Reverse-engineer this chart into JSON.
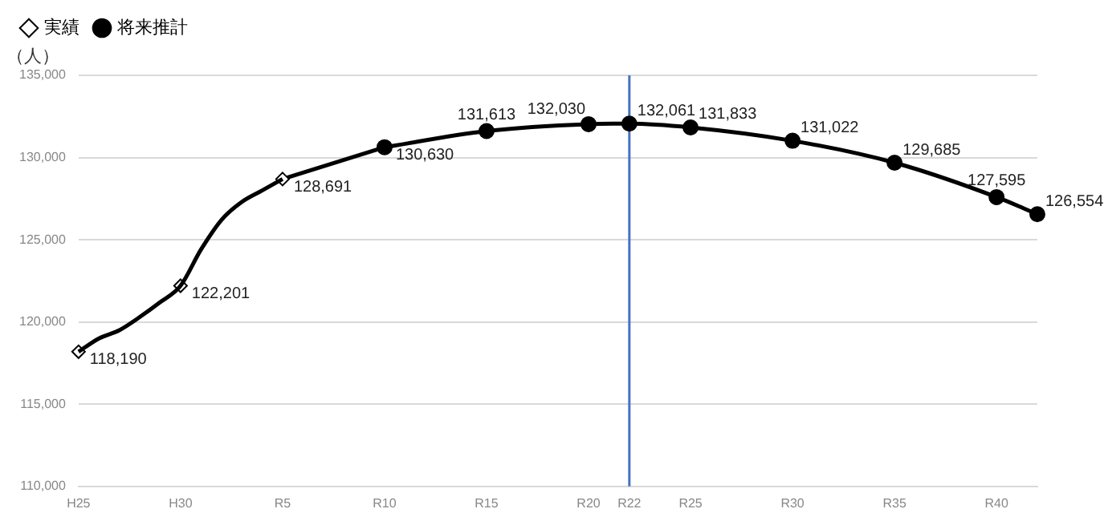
{
  "chart_data": {
    "type": "line",
    "ylabel": "（人）",
    "categories": [
      "H25",
      null,
      null,
      null,
      null,
      "H30",
      null,
      null,
      null,
      null,
      "R5",
      null,
      null,
      null,
      null,
      "R10",
      null,
      null,
      null,
      null,
      "R15",
      null,
      null,
      null,
      null,
      "R20",
      null,
      "R22",
      null,
      null,
      "R25",
      null,
      null,
      null,
      null,
      "R30",
      null,
      null,
      null,
      null,
      "R35",
      null,
      null,
      null,
      null,
      "R40",
      null,
      null
    ],
    "series": [
      {
        "color": "#000000",
        "marker": "none",
        "values": [
          118190,
          119000,
          119500,
          120300,
          121200,
          122201,
          124400,
          126200,
          127300,
          128000,
          128691,
          null,
          null,
          null,
          null,
          null,
          null,
          null,
          null,
          null,
          null,
          null,
          null,
          null,
          null,
          null,
          null,
          null,
          null,
          null,
          null,
          null,
          null,
          null,
          null,
          null,
          null,
          null,
          null,
          null,
          null,
          null,
          null,
          null,
          null,
          null,
          null,
          null
        ]
      },
      {
        "name": "実績",
        "type": "scatter",
        "color": "#000000",
        "marker": "diamond",
        "values": [
          118190,
          null,
          null,
          null,
          null,
          122201,
          null,
          null,
          null,
          null,
          128691,
          null,
          null,
          null,
          null,
          null,
          null,
          null,
          null,
          null,
          null,
          null,
          null,
          null,
          null,
          null,
          null,
          null,
          null,
          null,
          null,
          null,
          null,
          null,
          null,
          null,
          null,
          null,
          null,
          null,
          null,
          null,
          null,
          null,
          null,
          null,
          null,
          null
        ],
        "value_labels": [
          "118,190",
          null,
          null,
          null,
          null,
          "122,201",
          null,
          null,
          null,
          null,
          "128,691",
          null,
          null,
          null,
          null,
          null,
          null,
          null,
          null,
          null,
          null,
          null,
          null,
          null,
          null,
          null,
          null,
          null,
          null,
          null,
          null,
          null,
          null,
          null,
          null,
          null,
          null,
          null,
          null,
          null,
          null,
          null,
          null,
          null,
          null,
          null,
          null,
          null
        ]
      },
      {
        "name": "将来推計",
        "color": "#000000",
        "marker": "circle",
        "values": [
          null,
          null,
          null,
          null,
          null,
          null,
          null,
          null,
          null,
          null,
          null,
          null,
          null,
          null,
          null,
          130630,
          null,
          null,
          null,
          null,
          131613,
          null,
          null,
          null,
          null,
          132030,
          null,
          132061,
          null,
          null,
          131833,
          null,
          null,
          null,
          null,
          131022,
          null,
          null,
          null,
          null,
          129685,
          null,
          null,
          null,
          null,
          127595,
          null,
          126554
        ],
        "value_labels": [
          null,
          null,
          null,
          null,
          null,
          null,
          null,
          null,
          null,
          null,
          null,
          null,
          null,
          null,
          null,
          "130,630",
          null,
          null,
          null,
          null,
          "131,613",
          null,
          null,
          null,
          null,
          "132,030",
          null,
          "132,061",
          null,
          null,
          "131,833",
          null,
          null,
          null,
          null,
          "131,022",
          null,
          null,
          null,
          null,
          "129,685",
          null,
          null,
          null,
          null,
          "127,595",
          null,
          "126,554"
        ]
      }
    ],
    "ylim": [
      110000,
      135000
    ],
    "yticks": [
      {
        "value": 110000,
        "label": "110,000"
      },
      {
        "value": 115000,
        "label": "115,000"
      },
      {
        "value": 120000,
        "label": "120,000"
      },
      {
        "value": 125000,
        "label": "125,000"
      },
      {
        "value": 130000,
        "label": "130,000"
      },
      {
        "value": 135000,
        "label": "135,000"
      }
    ],
    "grid": "y",
    "legend": "top left",
    "ref_lines": [
      {
        "axis": "x",
        "value": "R22",
        "color": "#4472c4"
      }
    ]
  }
}
